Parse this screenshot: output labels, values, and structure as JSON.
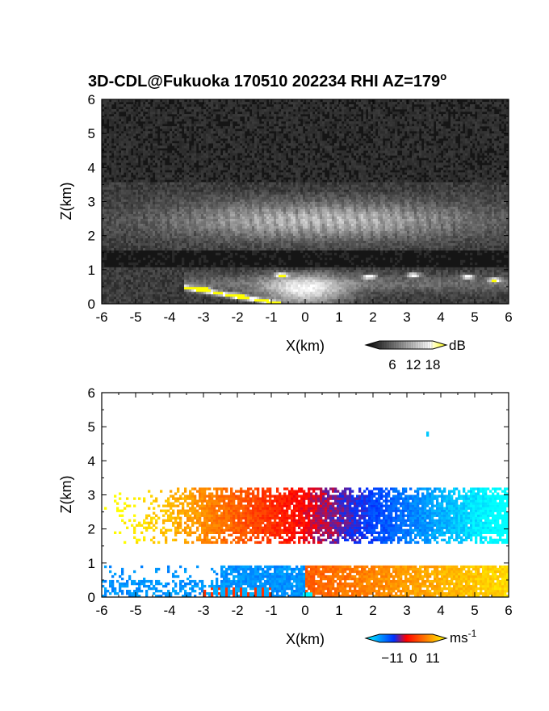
{
  "title": {
    "main": "3D-CDL@Fukuoka 170510 202234 RHI AZ=179",
    "degree_symbol": "o"
  },
  "chart_data": [
    {
      "type": "heatmap",
      "panel": "reflectivity",
      "xlabel": "X(km)",
      "ylabel": "Z(km)",
      "xlim": [
        -6,
        6
      ],
      "ylim": [
        0,
        6
      ],
      "x_ticks": [
        "-6",
        "-5",
        "-4",
        "-3",
        "-2",
        "-1",
        "0",
        "1",
        "2",
        "3",
        "4",
        "5",
        "6"
      ],
      "y_ticks": [
        "0",
        "1",
        "2",
        "3",
        "4",
        "5",
        "6"
      ],
      "colorbar": {
        "unit": "dB",
        "ticks": [
          "6",
          "12",
          "18"
        ],
        "range": [
          0,
          20
        ],
        "colors": [
          "#000000",
          "#ffffff",
          "#ffff00"
        ]
      },
      "features": [
        {
          "name": "upper cloud layer",
          "x_range": [
            -6,
            6
          ],
          "z_range": [
            1.7,
            3.2
          ],
          "peak": "bright streaks near x=0 to 1"
        },
        {
          "name": "lower layer",
          "x_range": [
            -3.5,
            6
          ],
          "z_range": [
            0,
            1.0
          ],
          "peak": "yellow spots at x=-3 to -1, 3, 4.8, 5.5"
        }
      ]
    },
    {
      "type": "heatmap",
      "panel": "doppler velocity",
      "xlabel": "X(km)",
      "ylabel": "Z(km)",
      "xlim": [
        -6,
        6
      ],
      "ylim": [
        0,
        6
      ],
      "x_ticks": [
        "-6",
        "-5",
        "-4",
        "-3",
        "-2",
        "-1",
        "0",
        "1",
        "2",
        "3",
        "4",
        "5",
        "6"
      ],
      "y_ticks": [
        "0",
        "1",
        "2",
        "3",
        "4",
        "5",
        "6"
      ],
      "colorbar": {
        "unit": "ms",
        "unit_superscript": "-1",
        "ticks": [
          "−11",
          "0",
          "11"
        ],
        "range": [
          -11,
          11
        ],
        "colors": [
          "#00ffff",
          "#0030ff",
          "#ff0000",
          "#ffff00"
        ]
      },
      "features": [
        {
          "name": "upper layer",
          "x_range": [
            -6,
            6
          ],
          "z_range": [
            1.6,
            3.2
          ],
          "velocity": "positive (yellow/orange) at x<0, negative (blue/cyan) at x>0"
        },
        {
          "name": "lower layer",
          "x_range": [
            -3.8,
            6
          ],
          "z_range": [
            0,
            0.95
          ],
          "velocity": "negative (blue) at x<0, positive (red/orange) at x>0"
        }
      ]
    }
  ]
}
